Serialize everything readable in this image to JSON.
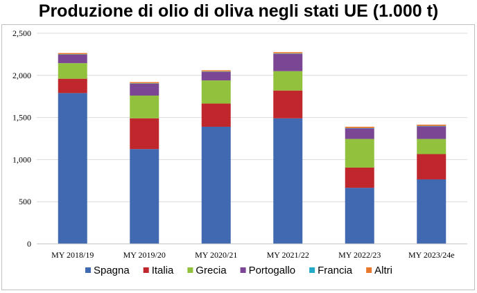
{
  "chart_data": {
    "type": "bar",
    "stacked": true,
    "title": "Produzione di olio di oliva negli stati UE (1.000 t)",
    "xlabel": "",
    "ylabel": "",
    "ylim": [
      0,
      2500
    ],
    "yticks": [
      0,
      500,
      1000,
      1500,
      2000,
      2500
    ],
    "ytick_labels": [
      "0",
      "500",
      "1,000",
      "1,500",
      "2,000",
      "2,500"
    ],
    "grid": true,
    "legend_position": "bottom",
    "categories": [
      "MY 2018/19",
      "MY 2019/20",
      "MY 2020/21",
      "MY 2021/22",
      "MY 2022/23",
      "MY 2023/24e"
    ],
    "series": [
      {
        "name": "Spagna",
        "color": "#4169b1",
        "values": [
          1790,
          1125,
          1390,
          1490,
          665,
          765
        ]
      },
      {
        "name": "Italia",
        "color": "#c0272d",
        "values": [
          170,
          365,
          275,
          330,
          240,
          300
        ]
      },
      {
        "name": "Grecia",
        "color": "#92c13e",
        "values": [
          185,
          270,
          275,
          230,
          340,
          180
        ]
      },
      {
        "name": "Portogallo",
        "color": "#7b4794",
        "values": [
          100,
          140,
          100,
          205,
          125,
          150
        ]
      },
      {
        "name": "Francia",
        "color": "#24a9c8",
        "values": [
          5,
          5,
          5,
          5,
          5,
          5
        ]
      },
      {
        "name": "Altri",
        "color": "#e7782b",
        "values": [
          15,
          15,
          15,
          15,
          15,
          15
        ]
      }
    ]
  }
}
